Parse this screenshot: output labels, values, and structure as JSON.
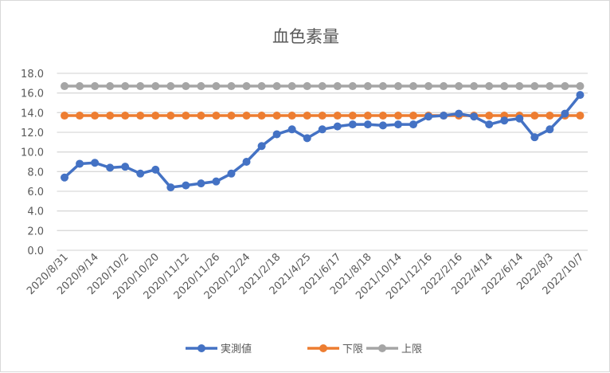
{
  "chart_data": {
    "type": "line",
    "title": "血色素量",
    "xlabel": "",
    "ylabel": "",
    "ylim": [
      0,
      18
    ],
    "yticks": [
      "0.0",
      "2.0",
      "4.0",
      "6.0",
      "8.0",
      "10.0",
      "12.0",
      "14.0",
      "16.0",
      "18.0"
    ],
    "grid": true,
    "legend_position": "bottom",
    "x_tick_labels": [
      "2020/8/31",
      "2020/9/14",
      "2020/10/2",
      "2020/10/20",
      "2020/11/12",
      "2020/11/26",
      "2020/12/24",
      "2021/2/18",
      "2021/4/25",
      "2021/6/17",
      "2021/8/18",
      "2021/10/14",
      "2021/12/16",
      "2022/2/16",
      "2022/4/14",
      "2022/6/14",
      "2022/8/3",
      "2022/10/7"
    ],
    "n_points": 35,
    "series": [
      {
        "name": "実測値",
        "color": "#4472c4",
        "values": [
          7.4,
          8.8,
          8.9,
          8.4,
          8.5,
          7.8,
          8.2,
          6.4,
          6.6,
          6.8,
          7.0,
          7.8,
          9.0,
          10.6,
          11.8,
          12.3,
          11.4,
          12.3,
          12.6,
          12.8,
          12.8,
          12.7,
          12.8,
          12.8,
          13.6,
          13.7,
          13.9,
          13.6,
          12.8,
          13.2,
          13.4,
          11.5,
          12.3,
          13.9,
          15.8
        ]
      },
      {
        "name": "下限",
        "color": "#ed7d31",
        "values": [
          13.7,
          13.7,
          13.7,
          13.7,
          13.7,
          13.7,
          13.7,
          13.7,
          13.7,
          13.7,
          13.7,
          13.7,
          13.7,
          13.7,
          13.7,
          13.7,
          13.7,
          13.7,
          13.7,
          13.7,
          13.7,
          13.7,
          13.7,
          13.7,
          13.7,
          13.7,
          13.7,
          13.7,
          13.7,
          13.7,
          13.7,
          13.7,
          13.7,
          13.7,
          13.7
        ]
      },
      {
        "name": "上限",
        "color": "#a5a5a5",
        "values": [
          16.7,
          16.7,
          16.7,
          16.7,
          16.7,
          16.7,
          16.7,
          16.7,
          16.7,
          16.7,
          16.7,
          16.7,
          16.7,
          16.7,
          16.7,
          16.7,
          16.7,
          16.7,
          16.7,
          16.7,
          16.7,
          16.7,
          16.7,
          16.7,
          16.7,
          16.7,
          16.7,
          16.7,
          16.7,
          16.7,
          16.7,
          16.7,
          16.7,
          16.7,
          16.7
        ]
      }
    ]
  }
}
